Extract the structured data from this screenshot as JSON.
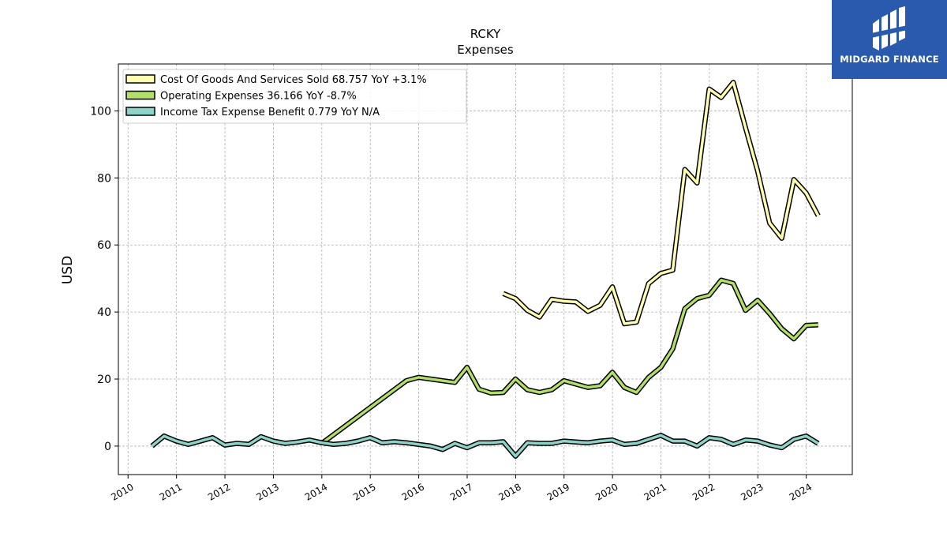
{
  "chart_data": {
    "type": "line",
    "title": "RCKY",
    "subtitle": "Expenses",
    "ylabel": "USD",
    "xlabel": "",
    "ylim": [
      -8.5,
      114
    ],
    "xlim": [
      2009.8,
      2024.95
    ],
    "x_ticks": [
      "2010",
      "2011",
      "2012",
      "2013",
      "2014",
      "2015",
      "2016",
      "2017",
      "2018",
      "2019",
      "2020",
      "2021",
      "2022",
      "2023",
      "2024"
    ],
    "y_ticks": [
      0,
      20,
      40,
      60,
      80,
      100
    ],
    "grid": true,
    "legend_position": "top-left",
    "series": [
      {
        "name": "Cost Of Goods And Services Sold",
        "legend_label": "Cost Of Goods And Services Sold  68.757 YoY +3.1%",
        "color": "#ffffb3",
        "points": [
          [
            "2017-09-30",
            45.5
          ],
          [
            "2017-12-31",
            44.0
          ],
          [
            "2018-03-31",
            40.5
          ],
          [
            "2018-06-30",
            38.5
          ],
          [
            "2018-09-30",
            43.8
          ],
          [
            "2018-12-31",
            43.2
          ],
          [
            "2019-03-31",
            43.0
          ],
          [
            "2019-06-30",
            40.2
          ],
          [
            "2019-09-30",
            42.0
          ],
          [
            "2019-12-31",
            47.5
          ],
          [
            "2020-03-31",
            36.5
          ],
          [
            "2020-06-30",
            37.0
          ],
          [
            "2020-09-30",
            48.5
          ],
          [
            "2020-12-31",
            51.5
          ],
          [
            "2021-03-31",
            52.5
          ],
          [
            "2021-06-30",
            82.5
          ],
          [
            "2021-09-30",
            78.5
          ],
          [
            "2021-12-31",
            106.5
          ],
          [
            "2022-03-31",
            104.0
          ],
          [
            "2022-06-30",
            108.5
          ],
          [
            "2022-09-30",
            95.0
          ],
          [
            "2022-12-31",
            82.0
          ],
          [
            "2023-03-31",
            66.5
          ],
          [
            "2023-06-30",
            62.0
          ],
          [
            "2023-09-30",
            79.5
          ],
          [
            "2023-12-31",
            75.5
          ],
          [
            "2024-03-31",
            68.757
          ]
        ]
      },
      {
        "name": "Operating Expenses",
        "legend_label": "Operating Expenses  36.166 YoY -8.7%",
        "color": "#b3de69",
        "points": [
          [
            "2014-01-01",
            0.8
          ],
          [
            "2015-09-30",
            19.5
          ],
          [
            "2015-12-31",
            20.5
          ],
          [
            "2016-09-30",
            19.0
          ],
          [
            "2016-12-31",
            23.5
          ],
          [
            "2017-03-31",
            17.0
          ],
          [
            "2017-06-30",
            15.8
          ],
          [
            "2017-09-30",
            16.0
          ],
          [
            "2017-12-31",
            20.0
          ],
          [
            "2018-03-31",
            16.8
          ],
          [
            "2018-06-30",
            16.0
          ],
          [
            "2018-09-30",
            16.8
          ],
          [
            "2018-12-31",
            19.5
          ],
          [
            "2019-03-31",
            18.5
          ],
          [
            "2019-06-30",
            17.5
          ],
          [
            "2019-09-30",
            18.0
          ],
          [
            "2019-12-31",
            22.0
          ],
          [
            "2020-03-31",
            17.5
          ],
          [
            "2020-06-30",
            16.0
          ],
          [
            "2020-09-30",
            20.5
          ],
          [
            "2020-12-31",
            23.5
          ],
          [
            "2021-03-31",
            29.0
          ],
          [
            "2021-06-30",
            41.0
          ],
          [
            "2021-09-30",
            44.0
          ],
          [
            "2021-12-31",
            45.0
          ],
          [
            "2022-03-31",
            49.5
          ],
          [
            "2022-06-30",
            48.5
          ],
          [
            "2022-09-30",
            40.5
          ],
          [
            "2022-12-31",
            43.5
          ],
          [
            "2023-03-31",
            39.5
          ],
          [
            "2023-06-30",
            35.0
          ],
          [
            "2023-09-30",
            32.0
          ],
          [
            "2023-12-31",
            36.0
          ],
          [
            "2024-03-31",
            36.166
          ]
        ]
      },
      {
        "name": "Income Tax Expense Benefit",
        "legend_label": "Income Tax Expense Benefit  0.779 YoY N/A",
        "color": "#8dd3c7",
        "points": [
          [
            "2010-06-30",
            0.0
          ],
          [
            "2010-09-30",
            3.0
          ],
          [
            "2010-12-31",
            1.5
          ],
          [
            "2011-03-31",
            0.5
          ],
          [
            "2011-06-30",
            1.5
          ],
          [
            "2011-09-30",
            2.5
          ],
          [
            "2011-12-31",
            0.3
          ],
          [
            "2012-03-31",
            0.8
          ],
          [
            "2012-06-30",
            0.5
          ],
          [
            "2012-09-30",
            2.8
          ],
          [
            "2012-12-31",
            1.5
          ],
          [
            "2013-03-31",
            0.8
          ],
          [
            "2013-06-30",
            1.2
          ],
          [
            "2013-09-30",
            1.8
          ],
          [
            "2013-12-31",
            1.0
          ],
          [
            "2014-03-31",
            0.5
          ],
          [
            "2014-06-30",
            0.8
          ],
          [
            "2014-09-30",
            1.5
          ],
          [
            "2014-12-31",
            2.5
          ],
          [
            "2015-03-31",
            1.0
          ],
          [
            "2015-06-30",
            1.3
          ],
          [
            "2015-09-30",
            1.0
          ],
          [
            "2015-12-31",
            0.5
          ],
          [
            "2016-03-31",
            0.0
          ],
          [
            "2016-06-30",
            -1.0
          ],
          [
            "2016-09-30",
            0.8
          ],
          [
            "2016-12-31",
            -0.5
          ],
          [
            "2017-03-31",
            1.0
          ],
          [
            "2017-06-30",
            1.0
          ],
          [
            "2017-09-30",
            1.3
          ],
          [
            "2017-12-31",
            -3.0
          ],
          [
            "2018-03-31",
            1.0
          ],
          [
            "2018-06-30",
            0.8
          ],
          [
            "2018-09-30",
            0.8
          ],
          [
            "2018-12-31",
            1.5
          ],
          [
            "2019-03-31",
            1.2
          ],
          [
            "2019-06-30",
            1.0
          ],
          [
            "2019-09-30",
            1.5
          ],
          [
            "2019-12-31",
            1.8
          ],
          [
            "2020-03-31",
            0.5
          ],
          [
            "2020-06-30",
            0.8
          ],
          [
            "2020-09-30",
            2.0
          ],
          [
            "2020-12-31",
            3.2
          ],
          [
            "2021-03-31",
            1.5
          ],
          [
            "2021-06-30",
            1.5
          ],
          [
            "2021-09-30",
            0.0
          ],
          [
            "2021-12-31",
            2.5
          ],
          [
            "2022-03-31",
            2.0
          ],
          [
            "2022-06-30",
            0.5
          ],
          [
            "2022-09-30",
            1.8
          ],
          [
            "2022-12-31",
            1.5
          ],
          [
            "2023-03-31",
            0.3
          ],
          [
            "2023-06-30",
            -0.5
          ],
          [
            "2023-09-30",
            2.0
          ],
          [
            "2023-12-31",
            3.0
          ],
          [
            "2024-03-31",
            0.779
          ]
        ]
      }
    ]
  },
  "logo": {
    "text": "MIDGARD FINANCE",
    "bg_color": "#2a5aad"
  }
}
